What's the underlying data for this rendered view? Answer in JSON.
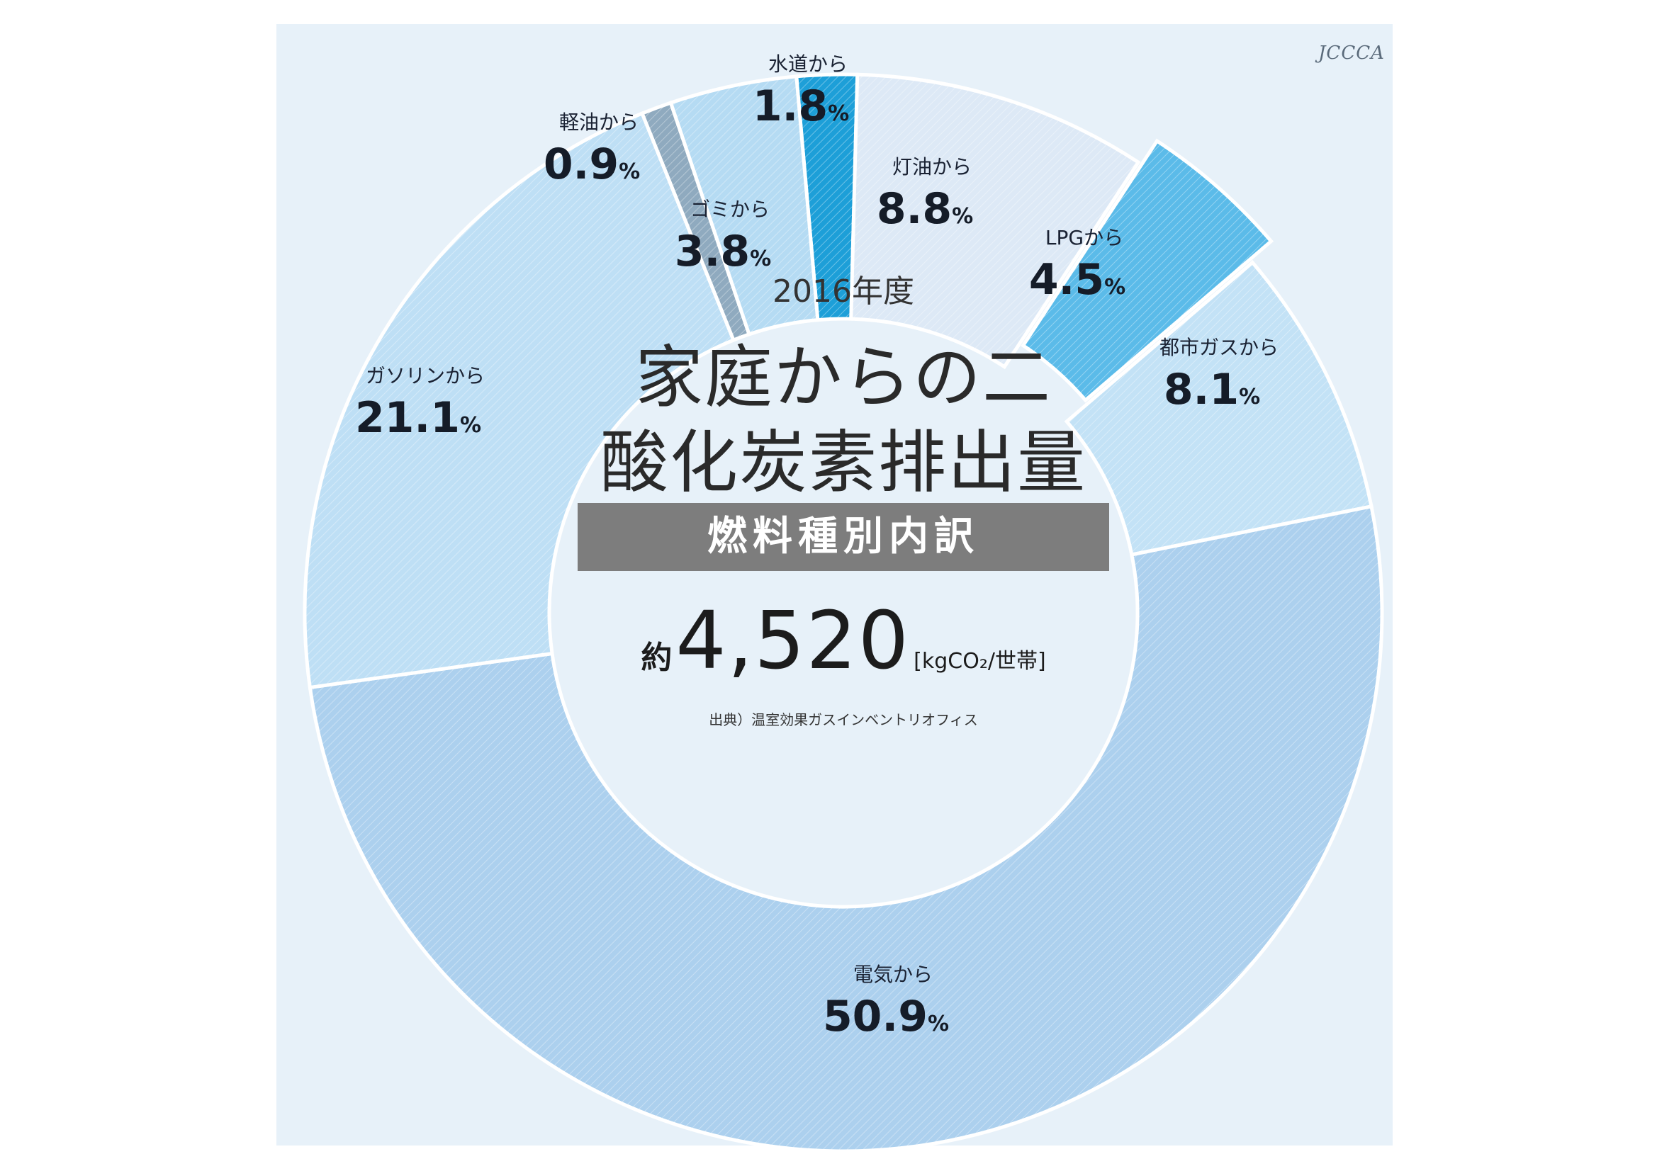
{
  "chart_data": {
    "type": "pie",
    "donut": true,
    "title": "家庭からの二酸化炭素排出量",
    "subtitle": "燃料種別内訳",
    "year": "2016年度",
    "total": {
      "prefix": "約",
      "value": "4,520",
      "unit": "[kgCO₂/世帯]"
    },
    "source": "出典）温室効果ガスインベントリオフィス",
    "logo": "JCCCA",
    "slices": [
      {
        "name": "水道から",
        "value": 1.8,
        "pct_text": "1.8",
        "color": "#1d9fd8"
      },
      {
        "name": "灯油から",
        "value": 8.8,
        "pct_text": "8.8",
        "color": "#dde9f6"
      },
      {
        "name": "LPGから",
        "value": 4.5,
        "pct_text": "4.5",
        "color": "#5bbbe9"
      },
      {
        "name": "都市ガスから",
        "value": 8.1,
        "pct_text": "8.1",
        "color": "#c3e2f6"
      },
      {
        "name": "電気から",
        "value": 50.9,
        "pct_text": "50.9",
        "color": "#acd0ee"
      },
      {
        "name": "ガソリンから",
        "value": 21.1,
        "pct_text": "21.1",
        "color": "#bedff5"
      },
      {
        "name": "軽油から",
        "value": 0.9,
        "pct_text": "0.9",
        "color": "#8faabf"
      },
      {
        "name": "ゴミから",
        "value": 3.8,
        "pct_text": "3.8",
        "color": "#b5dbf3"
      }
    ],
    "percent_suffix": "%"
  }
}
